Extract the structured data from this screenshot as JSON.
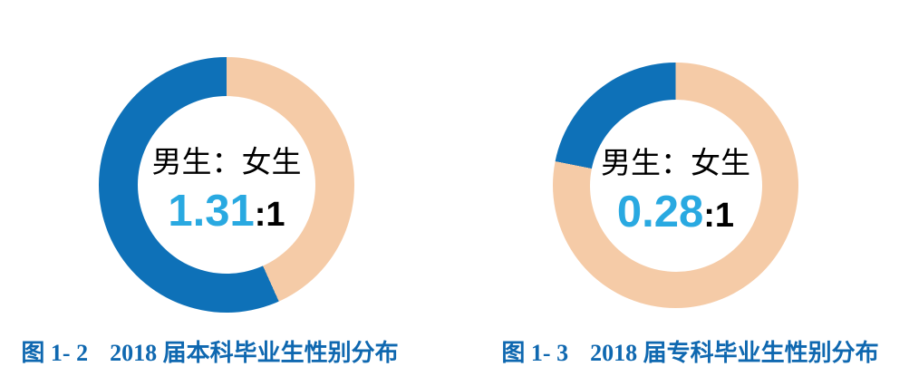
{
  "figure": {
    "background": "#FFFFFF"
  },
  "theme": {
    "male_color": "#0E71B8",
    "female_color": "#F5CBA7",
    "center_label_color": "#000000",
    "ratio_value_color": "#29A9E1",
    "ratio_suffix_color": "#000000",
    "caption_color": "#0F68B0"
  },
  "chart_data": [
    {
      "type": "pie",
      "subtype": "donut",
      "title": "图 1- 2　2018 届本科毕业生性别分布",
      "caption_fig": "图 1- 2",
      "caption_title": "2018 届本科毕业生性别分布",
      "center_label": "男生：女生",
      "ratio_value": "1.31",
      "ratio_suffix": ":1",
      "male_to_female": 1.31,
      "legend": "none",
      "start_angle_deg": 0,
      "direction": "clockwise",
      "slices": [
        {
          "name": "女生",
          "fraction": 0.4329,
          "color": "#F5CBA7"
        },
        {
          "name": "男生",
          "fraction": 0.5671,
          "color": "#0E71B8"
        }
      ]
    },
    {
      "type": "pie",
      "subtype": "donut",
      "title": "图 1- 3　2018 届专科毕业生性别分布",
      "caption_fig": "图 1- 3",
      "caption_title": "2018 届专科毕业生性别分布",
      "center_label": "男生：女生",
      "ratio_value": "0.28",
      "ratio_suffix": ":1",
      "male_to_female": 0.28,
      "legend": "none",
      "start_angle_deg": 0,
      "direction": "clockwise",
      "slices": [
        {
          "name": "女生",
          "fraction": 0.7813,
          "color": "#F5CBA7"
        },
        {
          "name": "男生",
          "fraction": 0.2188,
          "color": "#0E71B8"
        }
      ]
    }
  ]
}
